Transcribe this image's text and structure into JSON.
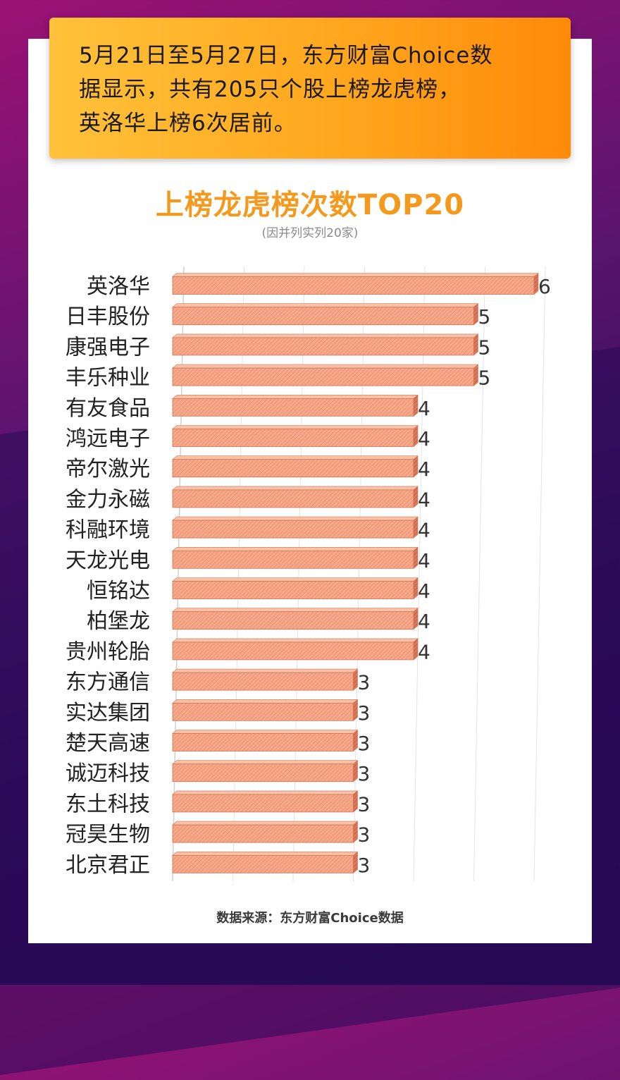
{
  "banner": {
    "line1": "5月21日至5月27日，东方财富Choice数",
    "line2": "据显示，共有205只个股上榜龙虎榜，",
    "line3": "英洛华上榜6次居前。"
  },
  "source": "数据来源：东方财富Choice数据",
  "chart_data": {
    "type": "bar",
    "orientation": "horizontal",
    "title": "上榜龙虎榜次数TOP20",
    "subtitle": "(因并列实列20家)",
    "categories": [
      "英洛华",
      "日丰股份",
      "康强电子",
      "丰乐种业",
      "有友食品",
      "鸿远电子",
      "帝尔激光",
      "金力永磁",
      "科融环境",
      "天龙光电",
      "恒铭达",
      "柏堡龙",
      "贵州轮胎",
      "东方通信",
      "实达集团",
      "楚天高速",
      "诚迈科技",
      "东土科技",
      "冠昊生物",
      "北京君正"
    ],
    "values": [
      6,
      5,
      5,
      5,
      4,
      4,
      4,
      4,
      4,
      4,
      4,
      4,
      4,
      3,
      3,
      3,
      3,
      3,
      3,
      3
    ],
    "data_labels": [
      "6",
      "5",
      "5",
      "5",
      "4",
      "4",
      "4",
      "4",
      "4",
      "4",
      "4",
      "4",
      "4",
      "3",
      "3",
      "3",
      "3",
      "3",
      "3",
      "3"
    ],
    "xlim": [
      0,
      6
    ],
    "grid": true,
    "legend": "none",
    "bar_color": "#f6a98a",
    "bar_edge_color": "#d2724f",
    "grid_color": "#e3e3e3"
  }
}
